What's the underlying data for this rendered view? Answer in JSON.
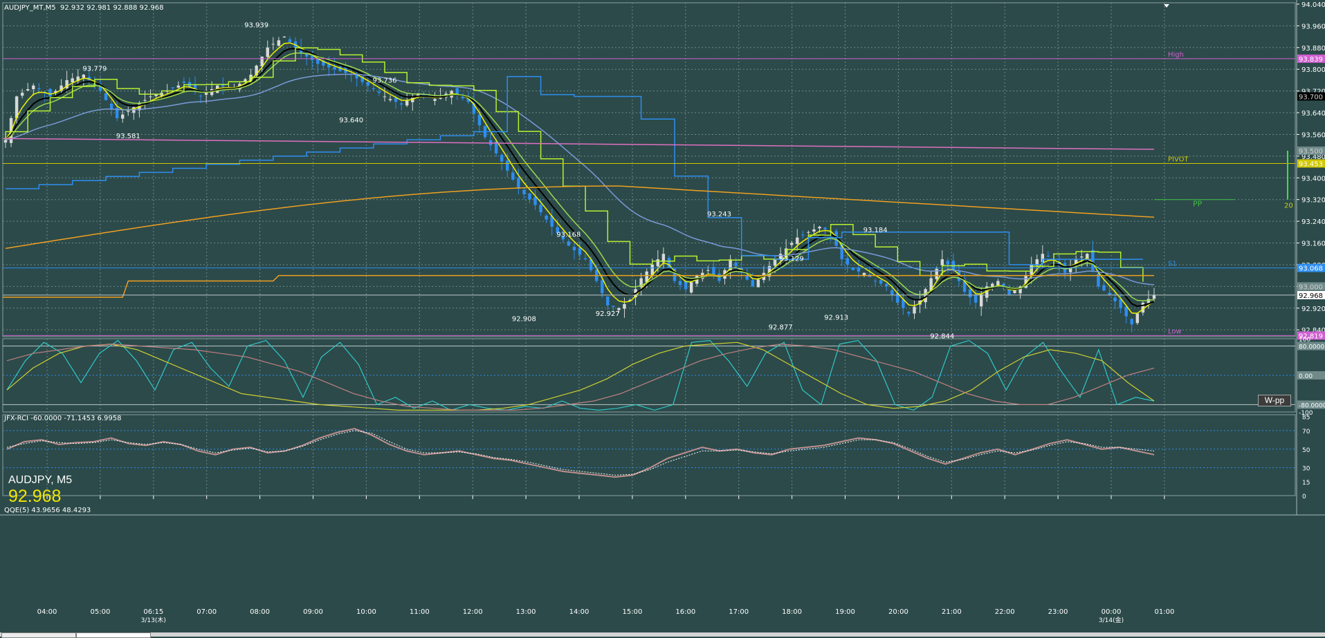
{
  "header": {
    "ohlc_text": "AUDJPY_MT,M5  92.932 92.981 92.888 92.968",
    "symbol_label": "AUDJPY, M5",
    "symbol_price": "92.968"
  },
  "indicators": {
    "rci_label": "JFX-RCI -60.0000 -71.1453 6.9958",
    "qqe_label": "QQE(5) 43.9656 48.4293"
  },
  "button": {
    "wpp_label": "W-pp"
  },
  "colors": {
    "background": "#2c4a4a",
    "grid": "#6f8a8a",
    "bull_candle": "#d8d8d8",
    "bear_candle": "#2e8ef0",
    "ma_yellow": "#f2f200",
    "ma_black": "#000000",
    "ma_green": "#9cd84c",
    "ma_bright_green": "#b8f030",
    "ma_blue": "#7a9ad8",
    "ma_orange": "#f0a020",
    "ma_pink": "#e070c0",
    "step_blue": "#2e8ef0",
    "pivot_yellow": "#d0c800",
    "high_magenta": "#d060d0",
    "s1_blue": "#2e8ef0",
    "pp_green": "#40c040",
    "rci_cyan": "#30c8c8",
    "rci_yellow": "#d0d030",
    "rci_pink": "#c08080",
    "qqe_main": "#c09090",
    "qqe_signal": "#ffffff"
  },
  "chart_data": [
    {
      "type": "candlestick",
      "symbol": "AUDJPY_MT",
      "timeframe": "M5",
      "x_labels": [
        "04:00",
        "05:00",
        "06:15",
        "07:00",
        "08:00",
        "09:00",
        "10:00",
        "11:00",
        "12:00",
        "13:00",
        "14:00",
        "15:00",
        "16:00",
        "17:00",
        "18:00",
        "19:00",
        "20:00",
        "21:00",
        "22:00",
        "23:00",
        "00:00",
        "01:00"
      ],
      "date_labels": [
        {
          "near": "06:15",
          "text": "3/13(木)"
        },
        {
          "near": "00:00",
          "text": "3/14(金)"
        }
      ],
      "y_ticks": [
        "94.040",
        "93.960",
        "93.880",
        "93.800",
        "93.720",
        "93.640",
        "93.560",
        "93.480",
        "93.400",
        "93.320",
        "93.240",
        "93.160",
        "93.080",
        "93.000",
        "92.920",
        "92.840"
      ],
      "ylim": [
        92.815,
        94.045
      ],
      "price_points": [
        {
          "t": 0,
          "p": 93.54
        },
        {
          "t": 2,
          "p": 93.7
        },
        {
          "t": 5,
          "p": 93.74
        },
        {
          "t": 8,
          "p": 93.7
        },
        {
          "t": 11,
          "p": 93.76
        },
        {
          "t": 14,
          "p": 93.78
        },
        {
          "t": 17,
          "p": 93.72
        },
        {
          "t": 20,
          "p": 93.62
        },
        {
          "t": 23,
          "p": 93.66
        },
        {
          "t": 26,
          "p": 93.7
        },
        {
          "t": 29,
          "p": 93.72
        },
        {
          "t": 32,
          "p": 93.75
        },
        {
          "t": 35,
          "p": 93.7
        },
        {
          "t": 38,
          "p": 93.74
        },
        {
          "t": 41,
          "p": 93.73
        },
        {
          "t": 44,
          "p": 93.78
        },
        {
          "t": 47,
          "p": 93.88
        },
        {
          "t": 50,
          "p": 93.92
        },
        {
          "t": 53,
          "p": 93.86
        },
        {
          "t": 56,
          "p": 93.82
        },
        {
          "t": 59,
          "p": 93.8
        },
        {
          "t": 62,
          "p": 93.78
        },
        {
          "t": 65,
          "p": 93.74
        },
        {
          "t": 68,
          "p": 93.7
        },
        {
          "t": 71,
          "p": 93.67
        },
        {
          "t": 74,
          "p": 93.71
        },
        {
          "t": 77,
          "p": 93.69
        },
        {
          "t": 80,
          "p": 93.72
        },
        {
          "t": 83,
          "p": 93.68
        },
        {
          "t": 86,
          "p": 93.55
        },
        {
          "t": 89,
          "p": 93.46
        },
        {
          "t": 92,
          "p": 93.36
        },
        {
          "t": 95,
          "p": 93.3
        },
        {
          "t": 98,
          "p": 93.22
        },
        {
          "t": 101,
          "p": 93.15
        },
        {
          "t": 104,
          "p": 93.1
        },
        {
          "t": 106,
          "p": 93.02
        },
        {
          "t": 108,
          "p": 92.93
        },
        {
          "t": 110,
          "p": 92.92
        },
        {
          "t": 112,
          "p": 92.95
        },
        {
          "t": 114,
          "p": 93.03
        },
        {
          "t": 116,
          "p": 93.08
        },
        {
          "t": 118,
          "p": 93.12
        },
        {
          "t": 120,
          "p": 93.02
        },
        {
          "t": 122,
          "p": 92.99
        },
        {
          "t": 124,
          "p": 93.04
        },
        {
          "t": 126,
          "p": 93.06
        },
        {
          "t": 128,
          "p": 93.02
        },
        {
          "t": 130,
          "p": 93.1
        },
        {
          "t": 132,
          "p": 93.05
        },
        {
          "t": 134,
          "p": 93.0
        },
        {
          "t": 136,
          "p": 93.05
        },
        {
          "t": 138,
          "p": 93.1
        },
        {
          "t": 140,
          "p": 93.14
        },
        {
          "t": 142,
          "p": 93.18
        },
        {
          "t": 144,
          "p": 93.2
        },
        {
          "t": 146,
          "p": 93.22
        },
        {
          "t": 148,
          "p": 93.2
        },
        {
          "t": 150,
          "p": 93.1
        },
        {
          "t": 152,
          "p": 93.06
        },
        {
          "t": 154,
          "p": 93.05
        },
        {
          "t": 156,
          "p": 93.02
        },
        {
          "t": 158,
          "p": 93.0
        },
        {
          "t": 160,
          "p": 92.94
        },
        {
          "t": 162,
          "p": 92.9
        },
        {
          "t": 164,
          "p": 92.95
        },
        {
          "t": 166,
          "p": 93.03
        },
        {
          "t": 168,
          "p": 93.1
        },
        {
          "t": 170,
          "p": 93.06
        },
        {
          "t": 172,
          "p": 92.98
        },
        {
          "t": 174,
          "p": 92.94
        },
        {
          "t": 176,
          "p": 93.0
        },
        {
          "t": 178,
          "p": 93.02
        },
        {
          "t": 180,
          "p": 92.97
        },
        {
          "t": 182,
          "p": 93.0
        },
        {
          "t": 184,
          "p": 93.08
        },
        {
          "t": 186,
          "p": 93.12
        },
        {
          "t": 188,
          "p": 93.1
        },
        {
          "t": 190,
          "p": 93.05
        },
        {
          "t": 192,
          "p": 93.1
        },
        {
          "t": 194,
          "p": 93.12
        },
        {
          "t": 196,
          "p": 93.0
        },
        {
          "t": 198,
          "p": 92.97
        },
        {
          "t": 200,
          "p": 92.92
        },
        {
          "t": 202,
          "p": 92.86
        },
        {
          "t": 204,
          "p": 92.94
        },
        {
          "t": 206,
          "p": 92.968
        }
      ],
      "annotations": [
        {
          "label": "93.939",
          "value": 93.939,
          "t": 45
        },
        {
          "label": "93.779",
          "value": 93.779,
          "t": 16
        },
        {
          "label": "93.736",
          "value": 93.736,
          "t": 68
        },
        {
          "label": "93.640",
          "value": 93.64,
          "t": 62
        },
        {
          "label": "93.581",
          "value": 93.581,
          "t": 22
        },
        {
          "label": "93.243",
          "value": 93.243,
          "t": 128
        },
        {
          "label": "93.184",
          "value": 93.184,
          "t": 156
        },
        {
          "label": "93.168",
          "value": 93.168,
          "t": 101
        },
        {
          "label": "93.129",
          "value": 93.129,
          "t": 141
        },
        {
          "label": "92.927",
          "value": 92.927,
          "t": 108
        },
        {
          "label": "92.908",
          "value": 92.908,
          "t": 93
        },
        {
          "label": "92.913",
          "value": 92.913,
          "t": 149
        },
        {
          "label": "92.877",
          "value": 92.877,
          "t": 139
        },
        {
          "label": "92.844",
          "value": 92.844,
          "t": 168
        }
      ],
      "levels": [
        {
          "name": "High",
          "value": 93.839,
          "label": "93.839",
          "color": "#d060d0"
        },
        {
          "name": "PIVOT",
          "value": 93.453,
          "label": "93.453",
          "color": "#d0c800"
        },
        {
          "name": "S1",
          "value": 93.068,
          "label": "93.068",
          "color": "#2e8ef0"
        },
        {
          "name": "Low",
          "value": 92.819,
          "label": "92.819",
          "color": "#d060d0"
        }
      ],
      "current_price": {
        "value": 92.968,
        "label": "92.968"
      },
      "axis_marker_labels": [
        "93.700",
        "93.500",
        "93.000",
        "94.040"
      ],
      "side_labels": {
        "pp": "PP",
        "range_value": "20"
      }
    },
    {
      "type": "line",
      "title": "JFX-RCI -60.0000 -71.1453 6.9958",
      "y_ticks": [
        "100",
        "80.0000",
        "0.00",
        "-80.0000",
        "-100"
      ],
      "ylim": [
        -100,
        100
      ],
      "series": [
        {
          "name": "RCI short",
          "color": "#30c8c8",
          "values": [
            -40,
            40,
            90,
            60,
            -20,
            60,
            95,
            40,
            -40,
            70,
            90,
            20,
            -30,
            80,
            95,
            40,
            -60,
            50,
            90,
            30,
            -80,
            -60,
            -90,
            -70,
            -95,
            -80,
            -90,
            -95,
            -85,
            -90,
            -70,
            -90,
            -95,
            -90,
            -80,
            -95,
            -80,
            90,
            95,
            40,
            -30,
            60,
            90,
            -40,
            -80,
            85,
            95,
            40,
            -80,
            -95,
            -60,
            80,
            95,
            60,
            -40,
            50,
            90,
            10,
            -60,
            70,
            -80,
            -60,
            -70
          ]
        },
        {
          "name": "RCI mid",
          "color": "#d0d030",
          "values": [
            -40,
            20,
            60,
            80,
            85,
            70,
            40,
            10,
            -20,
            -50,
            -60,
            -70,
            -80,
            -85,
            -90,
            -95,
            -95,
            -95,
            -95,
            -90,
            -80,
            -60,
            -40,
            -10,
            30,
            60,
            80,
            85,
            90,
            70,
            30,
            -10,
            -50,
            -80,
            -90,
            -85,
            -70,
            -40,
            10,
            50,
            70,
            60,
            40,
            -20,
            -70
          ]
        },
        {
          "name": "RCI long",
          "color": "#c08080",
          "values": [
            40,
            60,
            70,
            80,
            85,
            80,
            75,
            70,
            60,
            50,
            30,
            10,
            -20,
            -50,
            -70,
            -85,
            -90,
            -95,
            -95,
            -95,
            -90,
            -80,
            -70,
            -50,
            -20,
            10,
            40,
            60,
            75,
            85,
            80,
            70,
            50,
            30,
            10,
            -20,
            -50,
            -70,
            -80,
            -80,
            -60,
            -30,
            0,
            20
          ]
        }
      ]
    },
    {
      "type": "line",
      "title": "QQE(5) 43.9656 48.4293",
      "y_ticks": [
        "85",
        "70",
        "50",
        "30",
        "15",
        "0"
      ],
      "ylim": [
        0,
        87
      ],
      "series": [
        {
          "name": "QQE",
          "color": "#c09090",
          "values": [
            50,
            58,
            60,
            55,
            57,
            58,
            62,
            56,
            54,
            58,
            55,
            48,
            44,
            50,
            52,
            46,
            48,
            54,
            62,
            68,
            72,
            65,
            55,
            48,
            44,
            46,
            48,
            44,
            40,
            38,
            34,
            30,
            26,
            24,
            22,
            20,
            22,
            30,
            40,
            46,
            52,
            48,
            50,
            46,
            44,
            50,
            52,
            54,
            58,
            62,
            60,
            56,
            48,
            40,
            34,
            40,
            46,
            50,
            44,
            50,
            56,
            60,
            55,
            50,
            52,
            48,
            44
          ]
        },
        {
          "name": "QQE signal",
          "color": "#ffffff",
          "values": [
            52,
            56,
            59,
            57,
            56,
            57,
            60,
            57,
            55,
            57,
            55,
            50,
            46,
            49,
            51,
            47,
            48,
            53,
            60,
            66,
            70,
            67,
            58,
            50,
            46,
            46,
            47,
            45,
            41,
            39,
            36,
            32,
            28,
            26,
            24,
            22,
            23,
            28,
            36,
            42,
            48,
            48,
            49,
            47,
            45,
            48,
            50,
            52,
            56,
            60,
            60,
            57,
            50,
            42,
            36,
            39,
            44,
            48,
            46,
            49,
            54,
            58,
            56,
            52,
            52,
            50,
            48
          ]
        }
      ]
    }
  ]
}
